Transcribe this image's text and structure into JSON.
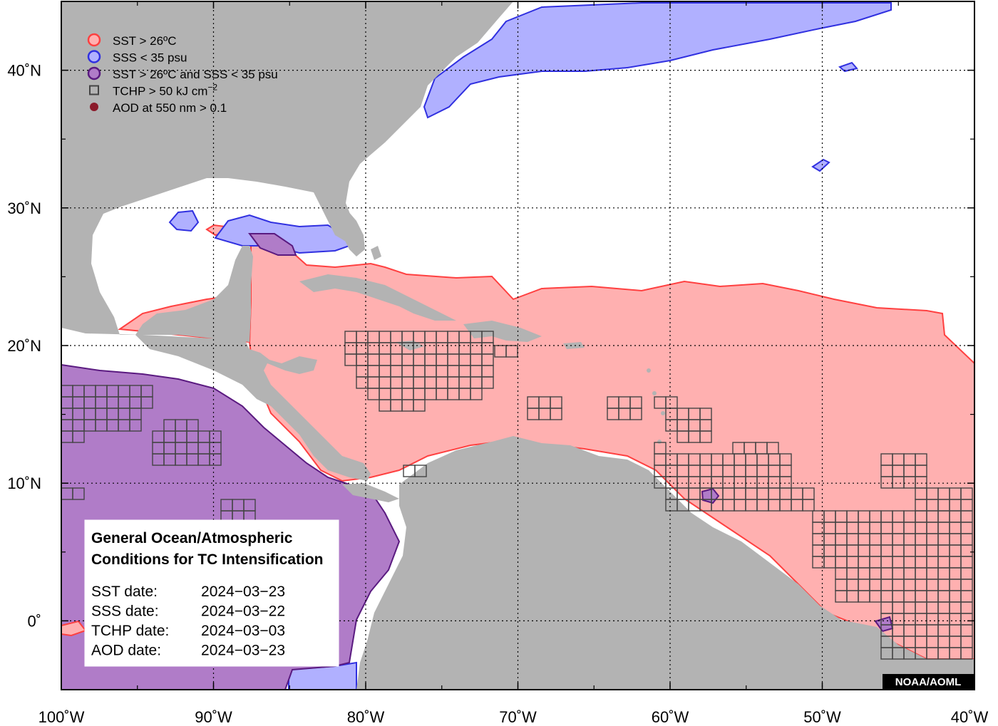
{
  "map": {
    "lon_range": [
      -100,
      -40
    ],
    "lat_range": [
      -5,
      45
    ],
    "lon_ticks": [
      {
        "value": -100,
        "label": "100˚W"
      },
      {
        "value": -90,
        "label": "90˚W"
      },
      {
        "value": -80,
        "label": "80˚W"
      },
      {
        "value": -70,
        "label": "70˚W"
      },
      {
        "value": -60,
        "label": "60˚W"
      },
      {
        "value": -50,
        "label": "50˚W"
      },
      {
        "value": -40,
        "label": "40˚W"
      }
    ],
    "lat_ticks": [
      {
        "value": 0,
        "label": "0˚"
      },
      {
        "value": 10,
        "label": "10˚N"
      },
      {
        "value": 20,
        "label": "20˚N"
      },
      {
        "value": 30,
        "label": "30˚N"
      },
      {
        "value": 40,
        "label": "40˚N"
      }
    ],
    "grid": true,
    "colors": {
      "land": "#b3b3b3",
      "ocean": "#ffffff",
      "sst": "#ffb0b0",
      "sst_edge": "#ff4040",
      "sss": "#b0b0ff",
      "sss_edge": "#3030e0",
      "both": "#b07cc8",
      "both_edge": "#5a1a80",
      "tchp_edge": "#555555",
      "aod": "#8b1a2a"
    }
  },
  "legend": {
    "position": "top-left",
    "items": [
      {
        "label": "SST > 26ºC",
        "symbol": "circle",
        "fill": "#ffb0b0",
        "stroke": "#ff4040"
      },
      {
        "label": "SSS < 35 psu",
        "symbol": "circle",
        "fill": "#b0b0ff",
        "stroke": "#3030e0"
      },
      {
        "label": "SST > 26ºC and SSS < 35 psu",
        "symbol": "circle",
        "fill": "#b07cc8",
        "stroke": "#5a1a80"
      },
      {
        "label": "TCHP > 50 kJ cm",
        "sup": "−2",
        "symbol": "square",
        "fill": "none",
        "stroke": "#444444"
      },
      {
        "label": "AOD at 550 nm > 0.1",
        "symbol": "dot",
        "fill": "#8b1a2a",
        "stroke": "#8b1a2a"
      }
    ]
  },
  "info": {
    "title_line1": "General Ocean/Atmospheric",
    "title_line2": "Conditions for TC Intensification",
    "rows": [
      {
        "label": "SST date:",
        "value": "2024−03−23"
      },
      {
        "label": "SSS date:",
        "value": "2024−03−22"
      },
      {
        "label": "TCHP date:",
        "value": "2024−03−03"
      },
      {
        "label": "AOD date:",
        "value": "2024−03−23"
      }
    ]
  },
  "credit": "NOAA/AOML"
}
